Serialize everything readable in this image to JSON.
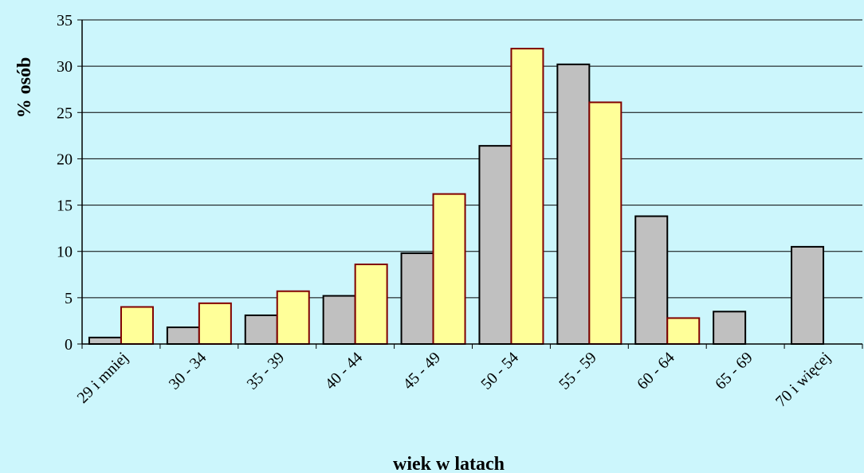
{
  "chart_data": {
    "type": "bar",
    "title": "",
    "xlabel": "wiek w latach",
    "ylabel": "% osób",
    "categories": [
      "29 i mniej",
      "30 - 34",
      "35 - 39",
      "40 - 44",
      "45 - 49",
      "50 - 54",
      "55 - 59",
      "60 - 64",
      "65 - 69",
      "70 i więcej"
    ],
    "series": [
      {
        "values": [
          0.7,
          1.8,
          3.1,
          5.2,
          9.8,
          21.4,
          30.2,
          13.8,
          3.5,
          10.5
        ],
        "color": "#C0C0C0"
      },
      {
        "values": [
          4.0,
          4.4,
          5.7,
          8.6,
          16.2,
          31.9,
          26.1,
          2.8,
          null,
          null
        ],
        "color": "#FFFF99"
      }
    ],
    "ylim": [
      0,
      35
    ],
    "yticks": [
      0,
      5,
      10,
      15,
      20,
      25,
      30,
      35
    ],
    "grid": true,
    "legend": "none",
    "colors": {
      "background": "#CCF6FC",
      "plot_area": "#CCF6FC",
      "series1_fill": "#C0C0C0",
      "series1_stroke": "#000000",
      "series2_fill": "#FFFF99",
      "series2_stroke": "#800000"
    }
  }
}
